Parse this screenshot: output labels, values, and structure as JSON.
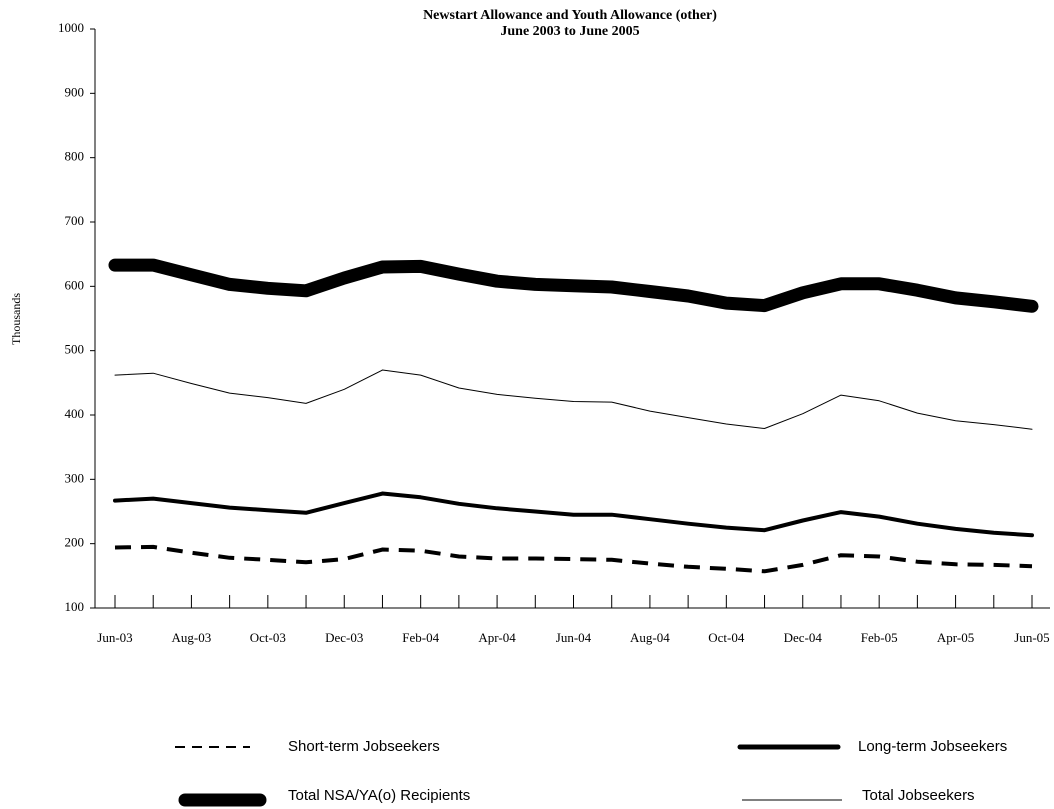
{
  "chart_data": {
    "type": "line",
    "title": "Newstart Allowance and Youth Allowance (other)",
    "subtitle": "June 2003 to June 2005",
    "xlabel": "",
    "ylabel": "Thousands",
    "ylim": [
      100,
      1000
    ],
    "yticks": [
      100,
      200,
      300,
      400,
      500,
      600,
      700,
      800,
      900,
      1000
    ],
    "x": [
      "Jun-03",
      "Jul-03",
      "Aug-03",
      "Sep-03",
      "Oct-03",
      "Nov-03",
      "Dec-03",
      "Jan-04",
      "Feb-04",
      "Mar-04",
      "Apr-04",
      "May-04",
      "Jun-04",
      "Jul-04",
      "Aug-04",
      "Sep-04",
      "Oct-04",
      "Nov-04",
      "Dec-04",
      "Jan-05",
      "Feb-05",
      "Mar-05",
      "Apr-05",
      "May-05",
      "Jun-05"
    ],
    "xtick_labels": [
      "Jun-03",
      "Aug-03",
      "Oct-03",
      "Dec-03",
      "Feb-04",
      "Apr-04",
      "Jun-04",
      "Aug-04",
      "Oct-04",
      "Dec-04",
      "Feb-05",
      "Apr-05",
      "Jun-05"
    ],
    "grid": false,
    "legend_position": "bottom",
    "series": [
      {
        "name": "Total NSA/YA(o) Recipients",
        "style": "thick",
        "values": [
          633,
          633,
          618,
          603,
          597,
          593,
          613,
          630,
          631,
          619,
          608,
          603,
          601,
          599,
          592,
          585,
          574,
          570,
          590,
          604,
          604,
          594,
          582,
          576,
          569
        ]
      },
      {
        "name": "Total Jobseekers",
        "style": "thin",
        "values": [
          462,
          465,
          449,
          434,
          427,
          418,
          440,
          470,
          462,
          442,
          432,
          426,
          421,
          420,
          406,
          396,
          386,
          379,
          402,
          431,
          422,
          403,
          391,
          385,
          378
        ]
      },
      {
        "name": "Long-term Jobseekers",
        "style": "medium",
        "values": [
          267,
          270,
          263,
          256,
          252,
          248,
          263,
          278,
          272,
          262,
          255,
          250,
          245,
          245,
          238,
          231,
          225,
          221,
          236,
          249,
          242,
          231,
          223,
          217,
          213
        ]
      },
      {
        "name": "Short-term Jobseekers",
        "style": "dashed",
        "values": [
          194,
          195,
          186,
          178,
          175,
          171,
          176,
          191,
          189,
          180,
          177,
          177,
          176,
          175,
          169,
          164,
          161,
          157,
          167,
          182,
          180,
          172,
          168,
          167,
          165
        ]
      }
    ]
  }
}
